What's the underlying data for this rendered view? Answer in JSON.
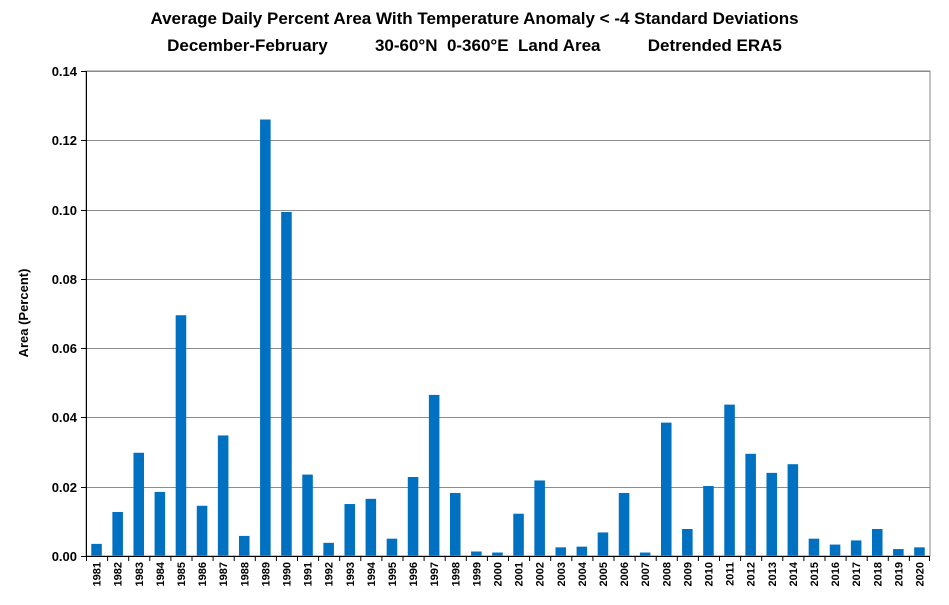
{
  "chart_data": {
    "type": "bar",
    "title": "Average Daily Percent Area With Temperature Anomaly < -4 Standard Deviations",
    "subtitle": "December-February          30-60°N  0-360°E  Land Area          Detrended ERA5",
    "xlabel": "",
    "ylabel": "Area (Percent)",
    "ylim": [
      0,
      0.14
    ],
    "yticks": [
      "0.00",
      "0.02",
      "0.04",
      "0.06",
      "0.08",
      "0.10",
      "0.12",
      "0.14"
    ],
    "grid": true,
    "bar_color": "#0070C0",
    "categories": [
      "1981",
      "1982",
      "1983",
      "1984",
      "1985",
      "1986",
      "1987",
      "1988",
      "1989",
      "1990",
      "1991",
      "1992",
      "1993",
      "1994",
      "1995",
      "1996",
      "1997",
      "1998",
      "1999",
      "2000",
      "2001",
      "2002",
      "2003",
      "2004",
      "2005",
      "2006",
      "2007",
      "2008",
      "2009",
      "2010",
      "2011",
      "2012",
      "2013",
      "2014",
      "2015",
      "2016",
      "2017",
      "2018",
      "2019",
      "2020"
    ],
    "values": [
      0.0035,
      0.0127,
      0.0298,
      0.0185,
      0.0695,
      0.0145,
      0.0348,
      0.0058,
      0.126,
      0.0993,
      0.0235,
      0.0038,
      0.015,
      0.0165,
      0.005,
      0.0228,
      0.0465,
      0.0182,
      0.0013,
      0.001,
      0.0122,
      0.0218,
      0.0025,
      0.0027,
      0.0068,
      0.0182,
      0.001,
      0.0385,
      0.0078,
      0.0202,
      0.0437,
      0.0295,
      0.024,
      0.0265,
      0.005,
      0.0033,
      0.0045,
      0.0078,
      0.002,
      0.0025
    ]
  }
}
